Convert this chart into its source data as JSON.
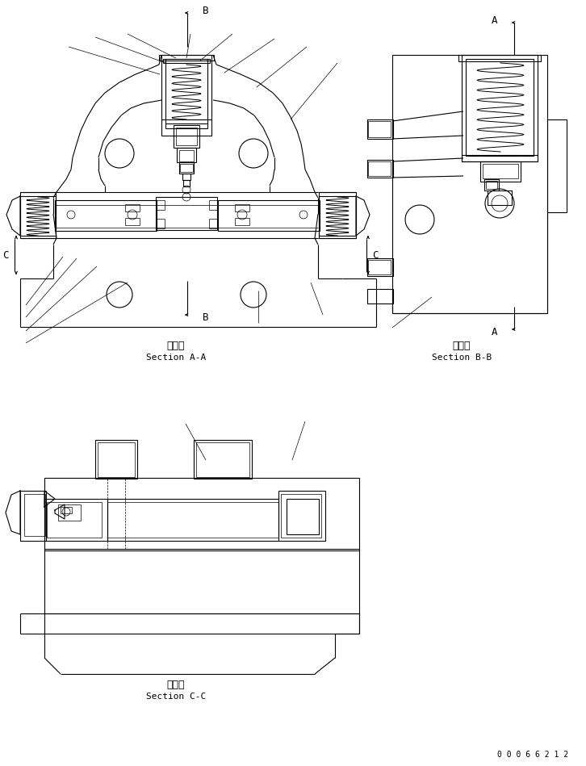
{
  "bg": "#ffffff",
  "lc": "#000000",
  "lw": 0.8,
  "tlw": 0.5,
  "aa_jp": "断　面",
  "aa_en": "Section A-A",
  "bb_jp": "断　面",
  "bb_en": "Section B-B",
  "cc_jp": "断　面",
  "cc_en": "Section C-C",
  "drw_num": "0 0 0 6 6 2 1 2"
}
